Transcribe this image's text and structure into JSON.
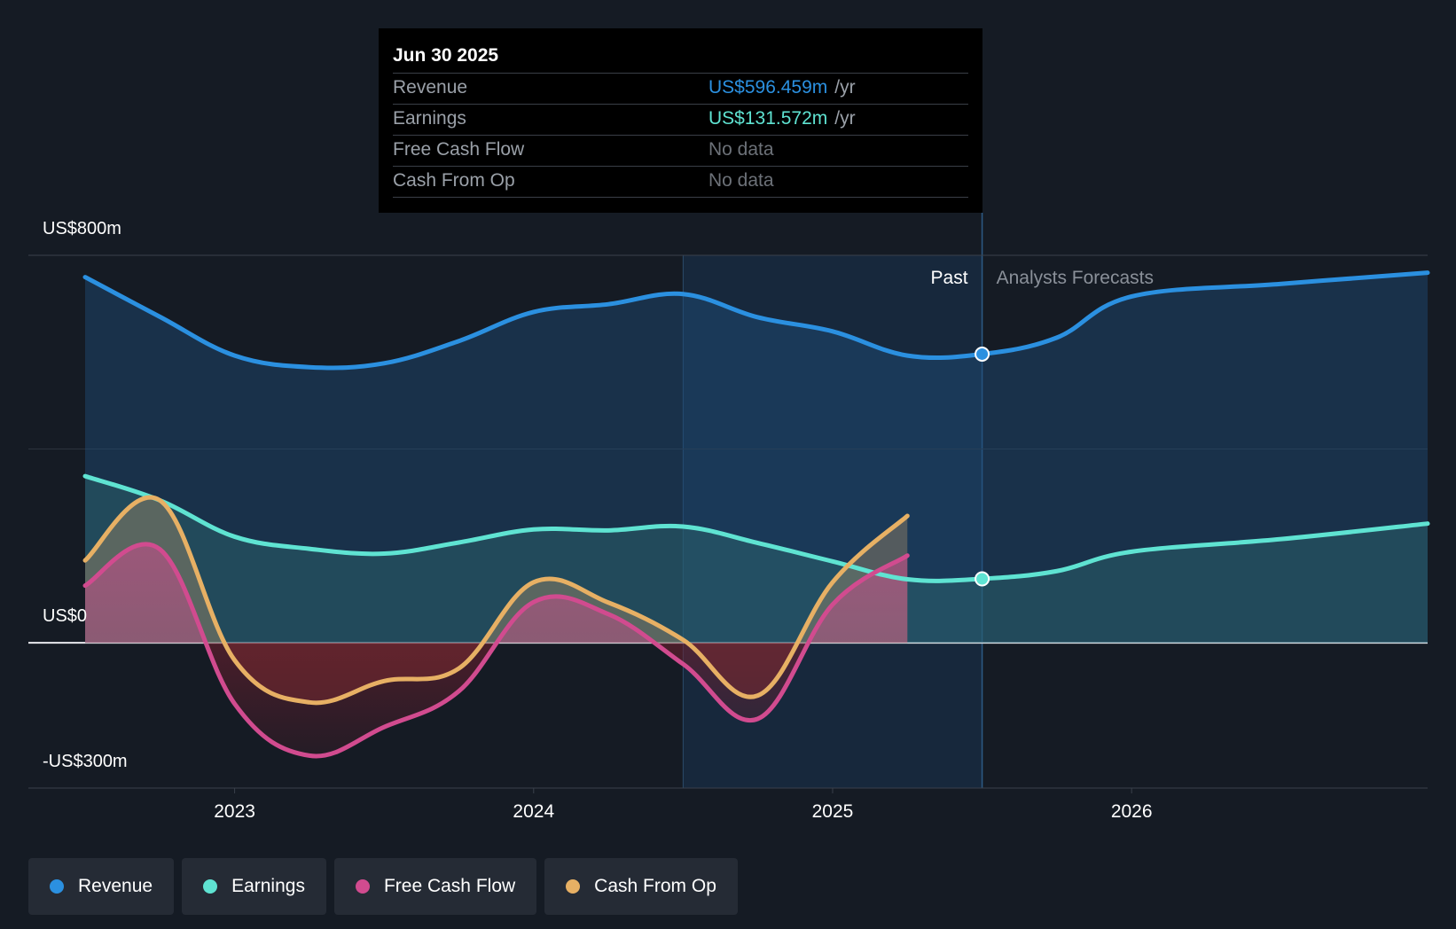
{
  "tooltip": {
    "date": "Jun 30 2025",
    "rows": [
      {
        "label": "Revenue",
        "value": "US$596.459m",
        "unit": "/yr",
        "color": "#2b90e0"
      },
      {
        "label": "Earnings",
        "value": "US$131.572m",
        "unit": "/yr",
        "color": "#5fe3d2"
      },
      {
        "label": "Free Cash Flow",
        "value": "No data",
        "unit": "",
        "color": "#6c7178"
      },
      {
        "label": "Cash From Op",
        "value": "No data",
        "unit": "",
        "color": "#6c7178"
      }
    ]
  },
  "legend": [
    {
      "label": "Revenue",
      "color": "#2b90e0"
    },
    {
      "label": "Earnings",
      "color": "#5fe3d2"
    },
    {
      "label": "Free Cash Flow",
      "color": "#d14b8f"
    },
    {
      "label": "Cash From Op",
      "color": "#e7b064"
    }
  ],
  "chart_data": {
    "type": "area",
    "title": "",
    "y_axis_labels": [
      "US$800m",
      "US$0",
      "-US$300m"
    ],
    "ylim": [
      -300,
      800
    ],
    "xlim": [
      2022.5,
      2026.99
    ],
    "x_ticks": [
      {
        "value": 2023,
        "label": "2023"
      },
      {
        "value": 2024,
        "label": "2024"
      },
      {
        "value": 2025,
        "label": "2025"
      },
      {
        "value": 2026,
        "label": "2026"
      }
    ],
    "period_labels": {
      "past": "Past",
      "forecast": "Analysts Forecasts"
    },
    "past_cutoff": 2025.5,
    "highlight_start": 2024.5,
    "series": [
      {
        "name": "Revenue",
        "color": "#2b90e0",
        "x": [
          2022.5,
          2022.75,
          2023.0,
          2023.25,
          2023.5,
          2023.75,
          2024.0,
          2024.25,
          2024.5,
          2024.75,
          2025.0,
          2025.25,
          2025.5,
          2025.75,
          2026.0,
          2026.5,
          2026.99
        ],
        "values": [
          755,
          673,
          593,
          569,
          577,
          623,
          683,
          699,
          720,
          672,
          643,
          593,
          596,
          630,
          715,
          741,
          764
        ]
      },
      {
        "name": "Earnings",
        "color": "#5fe3d2",
        "x": [
          2022.5,
          2022.75,
          2023.0,
          2023.25,
          2023.5,
          2023.75,
          2024.0,
          2024.25,
          2024.5,
          2024.75,
          2025.0,
          2025.25,
          2025.5,
          2025.75,
          2026.0,
          2026.5,
          2026.99
        ],
        "values": [
          344,
          294,
          219,
          194,
          184,
          207,
          234,
          232,
          240,
          206,
          168,
          131,
          132,
          148,
          188,
          214,
          246
        ]
      },
      {
        "name": "Free Cash Flow",
        "color": "#d14b8f",
        "x": [
          2022.5,
          2022.75,
          2023.0,
          2023.25,
          2023.5,
          2023.75,
          2024.0,
          2024.25,
          2024.5,
          2024.75,
          2025.0,
          2025.25
        ],
        "values": [
          118,
          193,
          -126,
          -233,
          -174,
          -100,
          84,
          59,
          -44,
          -157,
          79,
          180
        ]
      },
      {
        "name": "Cash From Op",
        "color": "#e7b064",
        "x": [
          2022.5,
          2022.75,
          2023.0,
          2023.25,
          2023.5,
          2023.75,
          2024.0,
          2024.25,
          2024.5,
          2024.75,
          2025.0,
          2025.25
        ],
        "values": [
          170,
          294,
          -36,
          -123,
          -79,
          -53,
          125,
          83,
          6,
          -109,
          125,
          262
        ]
      }
    ],
    "markers": [
      {
        "series": "Revenue",
        "x": 2025.5,
        "value": 596
      },
      {
        "series": "Earnings",
        "x": 2025.5,
        "value": 132
      }
    ]
  }
}
